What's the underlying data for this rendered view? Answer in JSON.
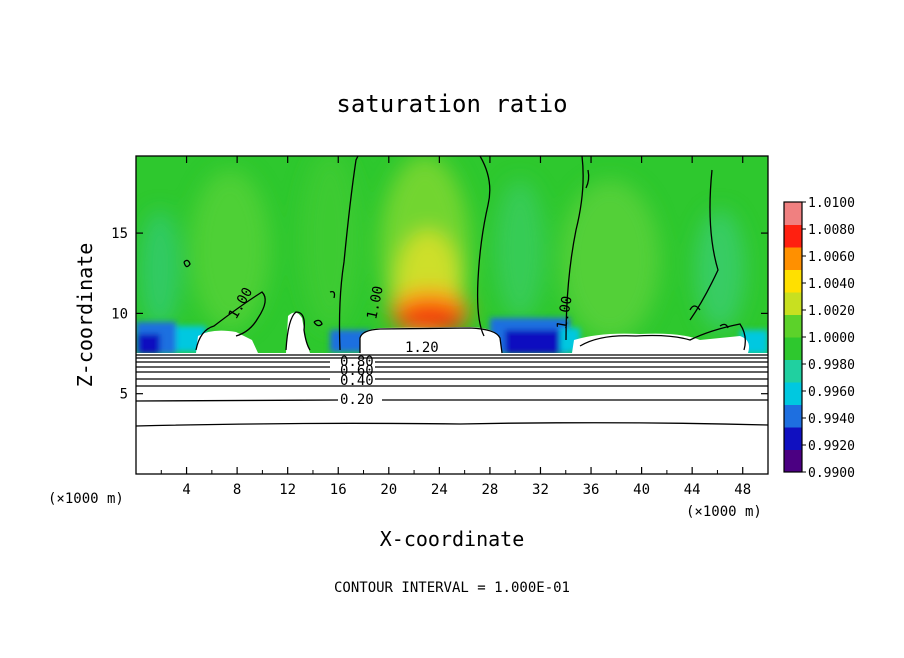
{
  "chart_data": {
    "type": "heatmap",
    "title": "saturation ratio",
    "xlabel": "X-coordinate",
    "ylabel": "Z-coordinate",
    "x_unit": "(×1000 m)",
    "x_unit_right": "(×1000 m)",
    "xlim": [
      0,
      50
    ],
    "ylim": [
      0,
      19.8
    ],
    "x_ticks": [
      4,
      8,
      12,
      16,
      20,
      24,
      28,
      32,
      36,
      40,
      44,
      48
    ],
    "x_tick_labels": [
      "4",
      "8",
      "12",
      "16",
      "20",
      "24",
      "28",
      "32",
      "36",
      "40",
      "44",
      "48"
    ],
    "y_ticks": [
      5,
      10,
      15
    ],
    "y_tick_labels": [
      "5",
      "10",
      "15"
    ],
    "colorbar": {
      "min": 0.99,
      "max": 1.01,
      "ticks": [
        "1.0100",
        "1.0080",
        "1.0060",
        "1.0040",
        "1.0020",
        "1.0000",
        "0.9980",
        "0.9960",
        "0.9940",
        "0.9920",
        "0.9900"
      ],
      "colors": [
        "#4b0082",
        "#1010c0",
        "#1e6fe0",
        "#00c8e0",
        "#20d0a0",
        "#2ec82e",
        "#5cd22a",
        "#c8e020",
        "#ffe000",
        "#ff9000",
        "#ff2010",
        "#f08080"
      ]
    },
    "contour_levels": [
      0.1,
      0.2,
      0.3,
      0.4,
      0.5,
      0.6,
      0.7,
      0.8,
      0.9,
      1.0,
      1.1,
      1.2
    ],
    "contour_labels": [
      "1.20",
      "0.80",
      "0.60",
      "0.40",
      "0.20",
      "1.00",
      "1.00",
      "1.00"
    ],
    "note": "CONTOUR INTERVAL = 1.000E-01"
  }
}
